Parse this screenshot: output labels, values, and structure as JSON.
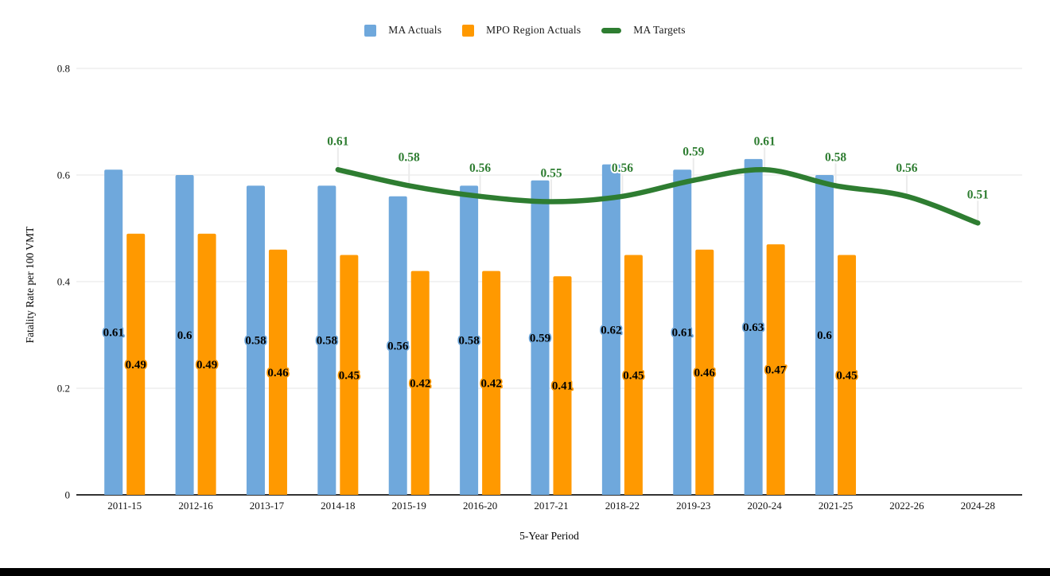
{
  "page": {
    "background": "#ffffff",
    "bottom_bar_color": "#000000"
  },
  "chart_data": {
    "type": "combo",
    "title": "",
    "xlabel": "5-Year Period",
    "ylabel": "Fatality Rate per 100 VMT",
    "categories": [
      "2011-15",
      "2012-16",
      "2013-17",
      "2014-18",
      "2015-19",
      "2016-20",
      "2017-21",
      "2018-22",
      "2019-23",
      "2020-24",
      "2021-25",
      "2022-26",
      "2024-28"
    ],
    "series": [
      {
        "name": "MA Actuals",
        "type": "bar",
        "color": "#6fa8dc",
        "values": [
          0.61,
          0.6,
          0.58,
          0.58,
          0.56,
          0.58,
          0.59,
          0.62,
          0.61,
          0.63,
          0.6,
          null,
          null
        ]
      },
      {
        "name": "MPO Region Actuals",
        "type": "bar",
        "color": "#ff9900",
        "values": [
          0.49,
          0.49,
          0.46,
          0.45,
          0.42,
          0.42,
          0.41,
          0.45,
          0.46,
          0.47,
          0.45,
          null,
          null
        ]
      },
      {
        "name": "MA Targets",
        "type": "line",
        "color": "#2e7d31",
        "values": [
          null,
          null,
          null,
          0.61,
          0.58,
          0.56,
          0.55,
          0.56,
          0.59,
          0.61,
          0.58,
          0.56,
          0.51
        ]
      }
    ],
    "y_axis": {
      "ticks": [
        0,
        0.2,
        0.4,
        0.6,
        0.8
      ],
      "tick_labels": [
        "0",
        "0.2",
        "0.4",
        "0.6",
        "0.8"
      ],
      "range": [
        0,
        0.8
      ],
      "grid": true
    },
    "legend_position": "top",
    "colors": {
      "gridline": "#e6e6e6",
      "axis_line": "#333333",
      "label_leader": "#ebebeb",
      "text": "#111111"
    }
  }
}
